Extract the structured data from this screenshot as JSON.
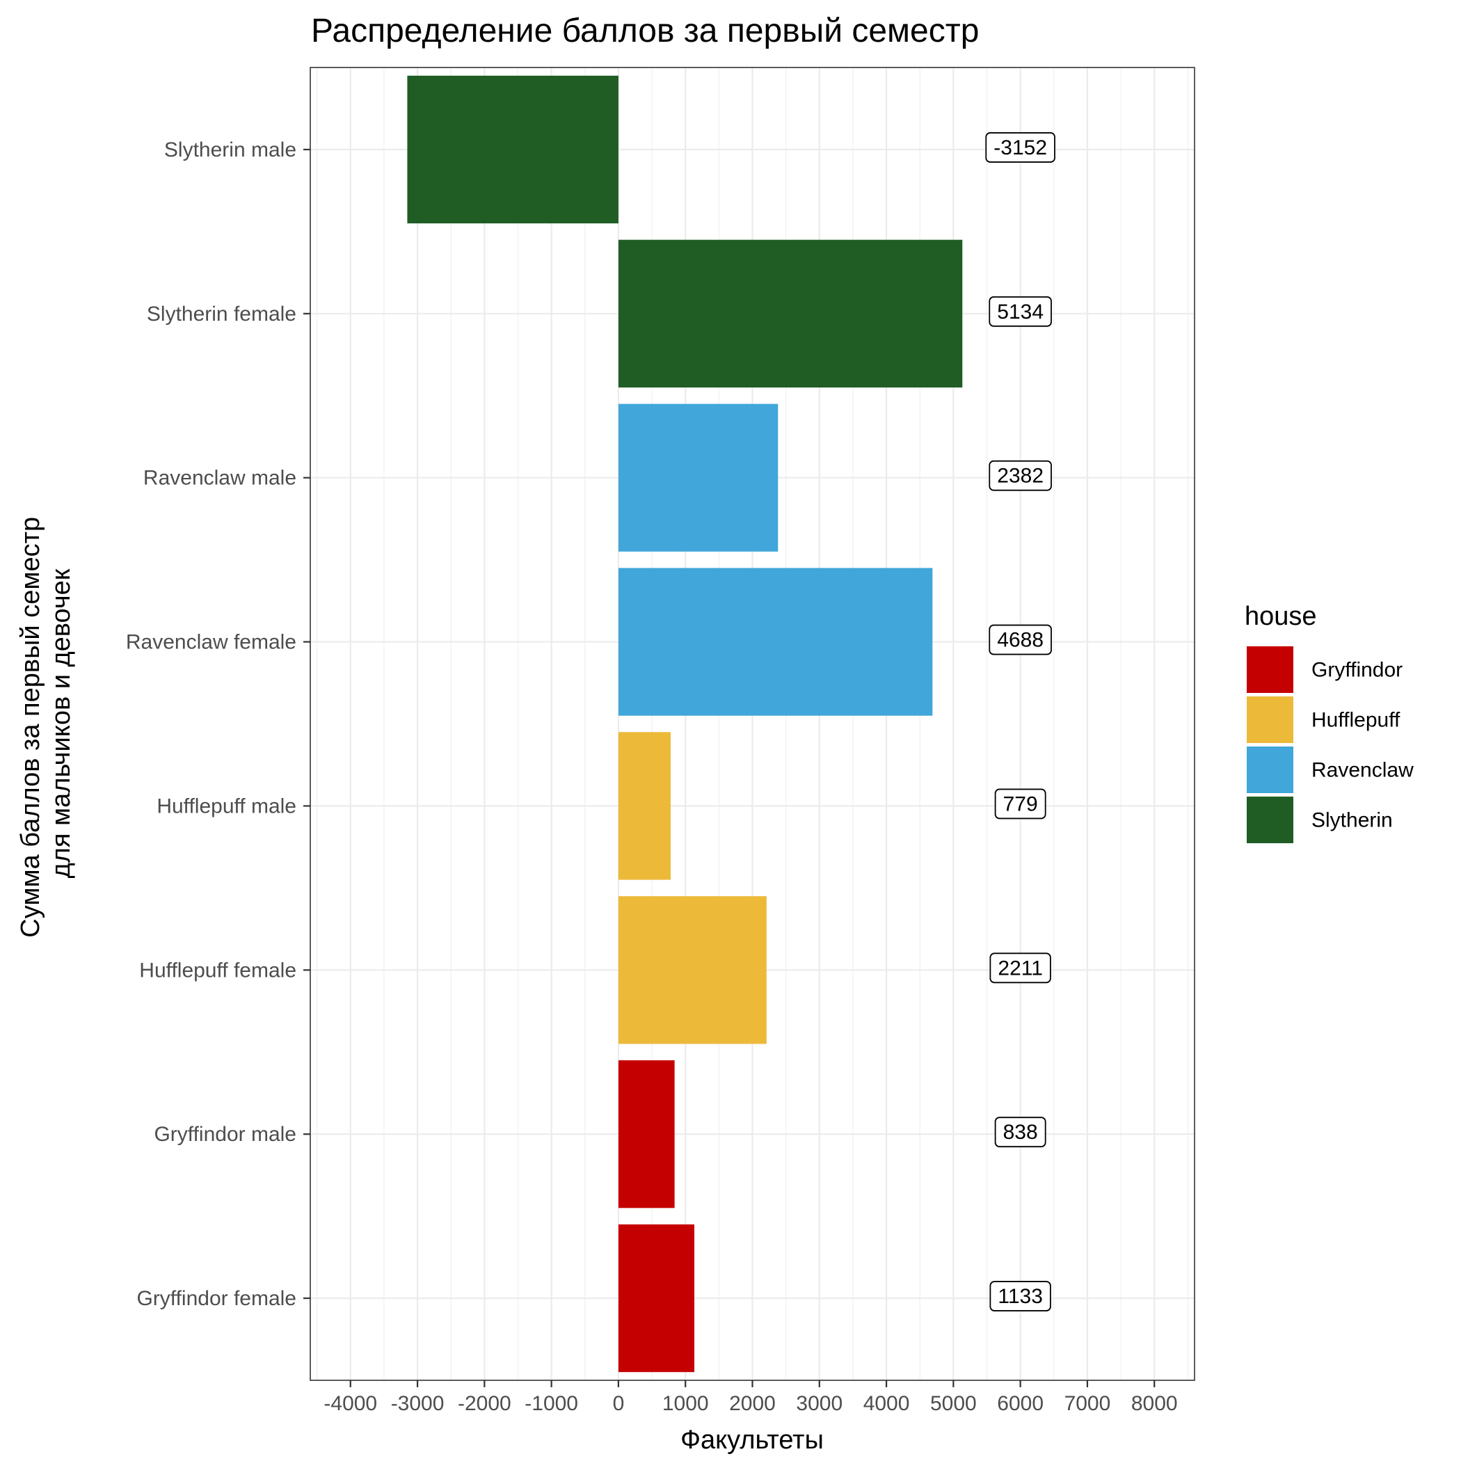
{
  "chart_data": {
    "type": "bar",
    "orientation": "horizontal",
    "title": "Распределение баллов за первый семестр",
    "xlabel": "Факультеты",
    "ylabel_lines": [
      "Сумма баллов за первый семестр",
      "для мальчиков и девочек"
    ],
    "xlim": [
      -4600,
      8600
    ],
    "x_ticks": [
      -4000,
      -3000,
      -2000,
      -1000,
      0,
      1000,
      2000,
      3000,
      4000,
      5000,
      6000,
      7000,
      8000
    ],
    "x_tick_labels": [
      "-4000",
      "-3000",
      "-2000",
      "-1000",
      "0",
      "1000",
      "2000",
      "3000",
      "4000",
      "5000",
      "6000",
      "7000",
      "8000"
    ],
    "categories": [
      "Slytherin male",
      "Slytherin female",
      "Ravenclaw male",
      "Ravenclaw female",
      "Hufflepuff male",
      "Hufflepuff female",
      "Gryffindor male",
      "Gryffindor female"
    ],
    "values": [
      -3152,
      5134,
      2382,
      4688,
      779,
      2211,
      838,
      1133
    ],
    "bar_house": [
      "Slytherin",
      "Slytherin",
      "Ravenclaw",
      "Ravenclaw",
      "Hufflepuff",
      "Hufflepuff",
      "Gryffindor",
      "Gryffindor"
    ],
    "data_labels": [
      "-3152",
      "5134",
      "2382",
      "4688",
      "779",
      "2211",
      "838",
      "1133"
    ],
    "data_label_x": 6000,
    "grid": true,
    "legend": {
      "title": "house",
      "position": "right",
      "items": [
        {
          "name": "Gryffindor",
          "color": "#C50000"
        },
        {
          "name": "Hufflepuff",
          "color": "#ECB939"
        },
        {
          "name": "Ravenclaw",
          "color": "#41A6D9"
        },
        {
          "name": "Slytherin",
          "color": "#1F5D25"
        }
      ]
    }
  }
}
